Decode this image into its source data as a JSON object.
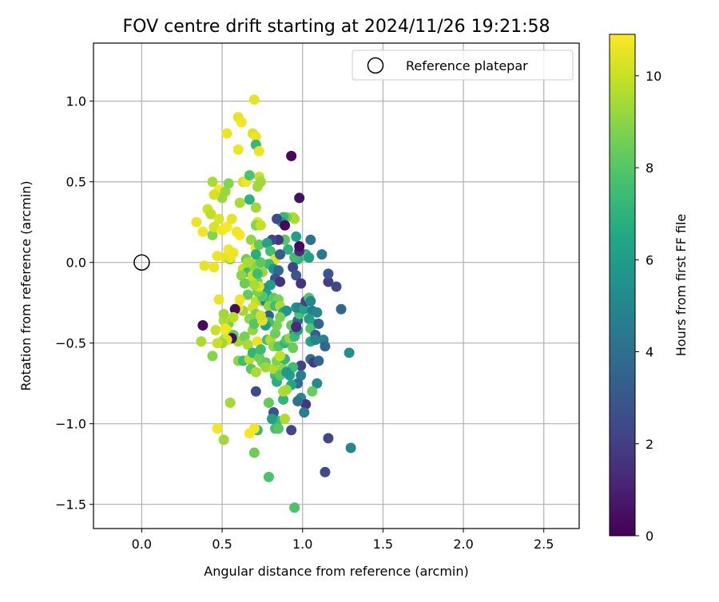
{
  "chart_data": {
    "type": "scatter",
    "title": "FOV centre drift starting at 2024/11/26 19:21:58",
    "xlabel": "Angular distance from reference (arcmin)",
    "ylabel": "Rotation from reference (arcmin)",
    "colorbar_label": "Hours from first FF file",
    "xlim": [
      -0.3,
      2.72
    ],
    "ylim": [
      -1.65,
      1.36
    ],
    "clim": [
      0,
      10.9
    ],
    "x_ticks": [
      0.0,
      0.5,
      1.0,
      1.5,
      2.0,
      2.5
    ],
    "x_tick_labels": [
      "0.0",
      "0.5",
      "1.0",
      "1.5",
      "2.0",
      "2.5"
    ],
    "y_ticks": [
      1.0,
      0.5,
      0.0,
      -0.5,
      -1.0,
      -1.5
    ],
    "y_tick_labels": [
      "1.0",
      "0.5",
      "0.0",
      "−0.5",
      "−1.0",
      "−1.5"
    ],
    "colorbar_ticks": [
      0,
      2,
      4,
      6,
      8,
      10
    ],
    "colorbar_tick_labels": [
      "0",
      "2",
      "4",
      "6",
      "8",
      "10"
    ],
    "colormap": "viridis",
    "grid": true,
    "legend": {
      "position": "top-right",
      "entries": [
        {
          "label": "Reference platepar",
          "marker": "open-circle",
          "color": "#000000"
        }
      ]
    },
    "reference_point": {
      "x": 0.0,
      "y": 0.0
    },
    "points": [
      [
        0.34,
        0.25,
        10.6
      ],
      [
        0.38,
        0.19,
        10.7
      ],
      [
        0.39,
        -0.02,
        10.5
      ],
      [
        0.41,
        0.33,
        10.1
      ],
      [
        0.43,
        0.3,
        9.8
      ],
      [
        0.44,
        0.17,
        8.9
      ],
      [
        0.45,
        0.22,
        10.2
      ],
      [
        0.45,
        -0.03,
        10.6
      ],
      [
        0.47,
        0.04,
        10.6
      ],
      [
        0.48,
        0.27,
        10.3
      ],
      [
        0.48,
        0.45,
        10.8
      ],
      [
        0.5,
        0.2,
        10.7
      ],
      [
        0.5,
        0.4,
        9.2
      ],
      [
        0.52,
        0.03,
        10.5
      ],
      [
        0.53,
        0.22,
        10.8
      ],
      [
        0.54,
        0.08,
        10.7
      ],
      [
        0.55,
        0.02,
        8.8
      ],
      [
        0.56,
        0.27,
        10.5
      ],
      [
        0.45,
        0.42,
        10.2
      ],
      [
        0.44,
        0.5,
        9.5
      ],
      [
        0.52,
        0.44,
        9.2
      ],
      [
        0.54,
        0.49,
        8.9
      ],
      [
        0.53,
        0.8,
        10.6
      ],
      [
        0.6,
        0.9,
        10.5
      ],
      [
        0.62,
        0.87,
        10.7
      ],
      [
        0.6,
        0.7,
        10.6
      ],
      [
        0.63,
        0.5,
        10.1
      ],
      [
        0.65,
        0.5,
        10.7
      ],
      [
        0.69,
        0.8,
        10.4
      ],
      [
        0.71,
        0.78,
        10.6
      ],
      [
        0.71,
        0.73,
        7.2
      ],
      [
        0.73,
        0.69,
        10.6
      ],
      [
        0.7,
        1.01,
        10.5
      ],
      [
        0.73,
        0.53,
        10.0
      ],
      [
        0.67,
        0.54,
        7.8
      ],
      [
        0.72,
        0.47,
        9.4
      ],
      [
        0.74,
        0.5,
        9.3
      ],
      [
        0.67,
        0.39,
        7.0
      ],
      [
        0.61,
        0.37,
        9.5
      ],
      [
        0.71,
        0.34,
        9.3
      ],
      [
        0.72,
        0.25,
        10.4
      ],
      [
        0.71,
        0.23,
        8.9
      ],
      [
        0.74,
        0.23,
        9.9
      ],
      [
        0.61,
        0.17,
        10.8
      ],
      [
        0.68,
        0.14,
        9.1
      ],
      [
        0.71,
        0.09,
        10.6
      ],
      [
        0.73,
        0.11,
        8.2
      ],
      [
        0.65,
        0.02,
        8.5
      ],
      [
        0.71,
        0.0,
        9.6
      ],
      [
        0.63,
        -0.04,
        9.9
      ],
      [
        0.66,
        -0.06,
        7.5
      ],
      [
        0.7,
        -0.03,
        9.0
      ],
      [
        0.68,
        -0.12,
        9.7
      ],
      [
        0.72,
        -0.12,
        8.6
      ],
      [
        0.66,
        -0.2,
        8.3
      ],
      [
        0.71,
        -0.24,
        9.9
      ],
      [
        0.75,
        -0.24,
        9.4
      ],
      [
        0.69,
        -0.28,
        10.2
      ],
      [
        0.71,
        -0.32,
        8.7
      ],
      [
        0.63,
        -0.3,
        9.3
      ],
      [
        0.61,
        -0.23,
        10.6
      ],
      [
        0.54,
        -0.38,
        8.7
      ],
      [
        0.53,
        -0.42,
        10.8
      ],
      [
        0.51,
        -0.36,
        9.6
      ],
      [
        0.51,
        -0.32,
        9.3
      ],
      [
        0.46,
        -0.42,
        10.0
      ],
      [
        0.48,
        -0.23,
        10.6
      ],
      [
        0.54,
        -0.48,
        10.7
      ],
      [
        0.51,
        -0.48,
        9.7
      ],
      [
        0.57,
        -0.45,
        8.2
      ],
      [
        0.6,
        -0.49,
        9.4
      ],
      [
        0.64,
        -0.46,
        8.6
      ],
      [
        0.66,
        -0.51,
        9.5
      ],
      [
        0.69,
        -0.42,
        9.1
      ],
      [
        0.72,
        -0.49,
        10.6
      ],
      [
        0.67,
        -0.35,
        9.0
      ],
      [
        0.7,
        -0.38,
        8.0
      ],
      [
        0.6,
        -0.61,
        9.0
      ],
      [
        0.63,
        -0.61,
        7.5
      ],
      [
        0.67,
        -0.6,
        9.7
      ],
      [
        0.68,
        -0.66,
        8.0
      ],
      [
        0.71,
        -0.68,
        9.5
      ],
      [
        0.69,
        -0.56,
        7.1
      ],
      [
        0.73,
        -0.59,
        8.5
      ],
      [
        0.74,
        -0.54,
        7.5
      ],
      [
        0.75,
        -0.62,
        8.7
      ],
      [
        0.77,
        -0.62,
        8.3
      ],
      [
        0.78,
        -0.48,
        7.5
      ],
      [
        0.8,
        -0.48,
        9.6
      ],
      [
        0.82,
        -0.52,
        9.1
      ],
      [
        0.83,
        -0.44,
        8.4
      ],
      [
        0.84,
        -0.39,
        8.7
      ],
      [
        0.85,
        -0.52,
        8.0
      ],
      [
        0.83,
        -0.7,
        7.4
      ],
      [
        0.84,
        -0.74,
        6.8
      ],
      [
        0.77,
        -0.65,
        9.2
      ],
      [
        0.82,
        -0.66,
        9.6
      ],
      [
        0.84,
        -0.61,
        8.8
      ],
      [
        0.88,
        -0.66,
        9.0
      ],
      [
        0.89,
        -0.6,
        7.2
      ],
      [
        0.86,
        -0.7,
        8.1
      ],
      [
        0.86,
        -0.58,
        9.9
      ],
      [
        0.89,
        -0.5,
        7.0
      ],
      [
        0.9,
        -0.48,
        7.8
      ],
      [
        0.92,
        -0.47,
        9.2
      ],
      [
        0.94,
        -0.53,
        8.4
      ],
      [
        0.95,
        -0.43,
        5.1
      ],
      [
        0.93,
        -0.39,
        8.2
      ],
      [
        0.95,
        -0.46,
        7.4
      ],
      [
        0.97,
        -0.42,
        6.3
      ],
      [
        0.97,
        -0.36,
        3.4
      ],
      [
        0.98,
        -0.32,
        7.7
      ],
      [
        0.96,
        -0.28,
        5.6
      ],
      [
        0.96,
        -0.4,
        1.3
      ],
      [
        0.98,
        -0.28,
        4.9
      ],
      [
        1.01,
        -0.29,
        6.3
      ],
      [
        1.02,
        -0.24,
        2.1
      ],
      [
        1.04,
        -0.22,
        8.0
      ],
      [
        1.05,
        -0.24,
        5.0
      ],
      [
        1.06,
        -0.3,
        4.6
      ],
      [
        1.09,
        -0.31,
        5.0
      ],
      [
        1.04,
        -0.35,
        6.0
      ],
      [
        1.07,
        -0.38,
        6.5
      ],
      [
        1.05,
        -0.41,
        7.9
      ],
      [
        1.1,
        -0.38,
        3.6
      ],
      [
        1.08,
        -0.45,
        3.3
      ],
      [
        1.05,
        -0.49,
        6.4
      ],
      [
        1.08,
        -0.48,
        4.9
      ],
      [
        1.13,
        -0.48,
        4.8
      ],
      [
        1.14,
        -0.52,
        3.6
      ],
      [
        1.05,
        -0.6,
        4.0
      ],
      [
        1.07,
        -0.62,
        1.8
      ],
      [
        1.1,
        -0.61,
        3.6
      ],
      [
        1.09,
        -0.75,
        5.3
      ],
      [
        1.06,
        -0.8,
        8.4
      ],
      [
        0.99,
        -0.64,
        2.1
      ],
      [
        0.99,
        -0.7,
        4.7
      ],
      [
        0.97,
        -0.75,
        4.0
      ],
      [
        0.99,
        -0.84,
        5.1
      ],
      [
        1.02,
        -0.88,
        1.7
      ],
      [
        0.97,
        -0.86,
        4.1
      ],
      [
        1.01,
        -0.93,
        4.6
      ],
      [
        0.94,
        -0.65,
        7.5
      ],
      [
        0.93,
        -0.76,
        6.4
      ],
      [
        0.92,
        -0.7,
        6.1
      ],
      [
        0.9,
        -0.68,
        5.8
      ],
      [
        0.88,
        -0.85,
        7.1
      ],
      [
        0.88,
        -0.8,
        9.6
      ],
      [
        0.9,
        -0.79,
        9.4
      ],
      [
        0.84,
        -0.98,
        7.5
      ],
      [
        0.82,
        -0.93,
        2.7
      ],
      [
        0.81,
        -0.97,
        6.2
      ],
      [
        0.83,
        -1.03,
        7.6
      ],
      [
        0.85,
        -1.03,
        8.0
      ],
      [
        0.79,
        -0.87,
        8.3
      ],
      [
        0.71,
        -0.8,
        2.5
      ],
      [
        0.72,
        -1.04,
        7.3
      ],
      [
        0.7,
        -1.03,
        10.7
      ],
      [
        0.67,
        -1.06,
        10.8
      ],
      [
        0.7,
        -1.18,
        8.5
      ],
      [
        0.79,
        -1.33,
        7.8
      ],
      [
        0.93,
        -1.04,
        2.4
      ],
      [
        0.89,
        -0.97,
        9.6
      ],
      [
        0.95,
        -1.52,
        7.8
      ],
      [
        1.14,
        -1.3,
        2.5
      ],
      [
        1.16,
        -1.09,
        2.4
      ],
      [
        1.3,
        -1.15,
        5.1
      ],
      [
        1.29,
        -0.56,
        5.4
      ],
      [
        1.24,
        -0.29,
        3.6
      ],
      [
        1.21,
        -0.15,
        2.4
      ],
      [
        1.16,
        -0.12,
        2.0
      ],
      [
        1.16,
        -0.07,
        2.9
      ],
      [
        1.12,
        0.05,
        4.4
      ],
      [
        1.05,
        0.14,
        4.2
      ],
      [
        1.02,
        0.05,
        6.7
      ],
      [
        1.0,
        0.04,
        8.0
      ],
      [
        1.04,
        0.03,
        6.0
      ],
      [
        0.97,
        0.02,
        7.0
      ],
      [
        0.95,
        0.03,
        7.5
      ],
      [
        0.94,
        -0.03,
        2.2
      ],
      [
        0.96,
        -0.08,
        3.0
      ],
      [
        0.99,
        -0.13,
        1.6
      ],
      [
        0.96,
        0.16,
        6.1
      ],
      [
        0.98,
        0.07,
        1.4
      ],
      [
        0.98,
        0.1,
        0.3
      ],
      [
        0.91,
        0.08,
        6.9
      ],
      [
        0.89,
        0.14,
        8.0
      ],
      [
        0.94,
        0.28,
        9.8
      ],
      [
        0.95,
        0.27,
        9.5
      ],
      [
        0.9,
        0.28,
        8.5
      ],
      [
        0.88,
        0.28,
        7.2
      ],
      [
        0.87,
        0.25,
        6.0
      ],
      [
        0.89,
        0.23,
        0.2
      ],
      [
        0.84,
        0.27,
        2.5
      ],
      [
        0.85,
        0.14,
        1.7
      ],
      [
        0.81,
        0.14,
        2.4
      ],
      [
        0.78,
        0.12,
        6.2
      ],
      [
        0.8,
        0.07,
        7.6
      ],
      [
        0.83,
        0.02,
        10.3
      ],
      [
        0.86,
        0.05,
        3.2
      ],
      [
        0.79,
        -0.01,
        7.3
      ],
      [
        0.82,
        -0.04,
        5.7
      ],
      [
        0.85,
        -0.05,
        3.7
      ],
      [
        0.83,
        -0.1,
        2.8
      ],
      [
        0.86,
        -0.12,
        1.6
      ],
      [
        0.8,
        -0.14,
        6.0
      ],
      [
        0.77,
        -0.16,
        5.8
      ],
      [
        0.78,
        -0.2,
        6.4
      ],
      [
        0.77,
        -0.24,
        4.6
      ],
      [
        0.8,
        -0.24,
        7.2
      ],
      [
        0.82,
        -0.22,
        8.2
      ],
      [
        0.85,
        -0.23,
        8.7
      ],
      [
        0.79,
        -0.27,
        9.0
      ],
      [
        0.83,
        -0.27,
        7.6
      ],
      [
        0.86,
        -0.27,
        9.5
      ],
      [
        0.88,
        -0.31,
        6.8
      ],
      [
        0.9,
        -0.3,
        5.6
      ],
      [
        0.86,
        -0.34,
        8.8
      ],
      [
        0.79,
        -0.33,
        3.3
      ],
      [
        0.79,
        -0.37,
        7.6
      ],
      [
        0.77,
        -0.39,
        5.9
      ],
      [
        0.75,
        -0.36,
        10.4
      ],
      [
        0.74,
        -0.33,
        10.1
      ],
      [
        0.75,
        -0.21,
        8.0
      ],
      [
        0.72,
        -0.18,
        8.7
      ],
      [
        0.73,
        -0.15,
        10.4
      ],
      [
        0.75,
        -0.06,
        9.2
      ],
      [
        0.74,
        0.0,
        8.1
      ],
      [
        0.71,
        0.05,
        6.8
      ],
      [
        0.69,
        -0.08,
        10.0
      ],
      [
        0.7,
        -0.14,
        9.5
      ],
      [
        0.72,
        -0.07,
        7.5
      ],
      [
        0.66,
        0.0,
        9.5
      ],
      [
        0.62,
        -0.08,
        9.0
      ],
      [
        0.64,
        -0.13,
        8.5
      ],
      [
        0.6,
        -0.28,
        10.6
      ],
      [
        0.58,
        -0.29,
        0.3
      ],
      [
        0.57,
        -0.34,
        9.8
      ],
      [
        0.56,
        -0.47,
        0.4
      ],
      [
        0.53,
        -0.48,
        10.3
      ],
      [
        0.52,
        -0.41,
        10.7
      ],
      [
        0.5,
        -0.5,
        9.3
      ],
      [
        0.47,
        -0.5,
        10.0
      ],
      [
        0.44,
        -0.58,
        8.9
      ],
      [
        0.38,
        -0.39,
        0.2
      ],
      [
        0.37,
        -0.49,
        9.5
      ],
      [
        0.55,
        -0.87,
        9.4
      ],
      [
        0.51,
        -1.1,
        9.3
      ],
      [
        0.47,
        -1.03,
        10.7
      ],
      [
        0.93,
        0.66,
        0.2
      ],
      [
        0.98,
        0.4,
        0.5
      ],
      [
        0.59,
        0.19,
        10.7
      ],
      [
        0.57,
        0.06,
        10.6
      ],
      [
        0.55,
        0.03,
        10.6
      ]
    ]
  }
}
